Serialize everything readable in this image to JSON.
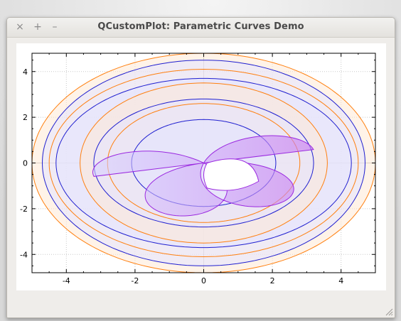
{
  "window": {
    "title": "QCustomPlot: Parametric Curves Demo",
    "controls": {
      "close": "×",
      "maximize": "+",
      "minimize": "–"
    }
  },
  "colors": {
    "orange": "#ff7f0e",
    "blue": "#1f1fd0",
    "purple": "#9a28e0",
    "orange_fill": "#ffe9d6",
    "blue_fill": "#e3e3ff"
  },
  "chart_data": {
    "type": "line",
    "xlim": [
      -5,
      5
    ],
    "ylim": [
      -4.8,
      4.8
    ],
    "x_ticks": [
      -4,
      -2,
      0,
      2,
      4
    ],
    "y_ticks": [
      4,
      2,
      0,
      -2,
      -4
    ],
    "x_tick_labels": [
      "-4",
      "-2",
      "0",
      "2",
      "4"
    ],
    "y_tick_labels": [
      "4",
      "2",
      "0",
      "-2",
      "-4"
    ],
    "grid": true,
    "series": [
      {
        "color": "orange",
        "fill": "orange",
        "rx": 5.0,
        "ry": 4.8
      },
      {
        "color": "blue",
        "fill": "blue",
        "rx": 4.7,
        "ry": 4.5
      },
      {
        "color": "orange",
        "fill": "none",
        "rx": 4.5,
        "ry": 4.1
      },
      {
        "color": "blue",
        "fill": "blue",
        "rx": 4.3,
        "ry": 3.7
      },
      {
        "color": "orange",
        "fill": "orange",
        "rx": 3.6,
        "ry": 3.5
      },
      {
        "color": "blue",
        "fill": "blue",
        "rx": 3.2,
        "ry": 2.8
      },
      {
        "color": "orange",
        "fill": "none",
        "rx": 2.8,
        "ry": 2.6
      },
      {
        "color": "blue",
        "fill": "blue",
        "rx": 2.1,
        "ry": 1.9
      },
      {
        "color": "purple",
        "fill": "purple",
        "type": "trefoil",
        "a": 3.3
      }
    ]
  }
}
